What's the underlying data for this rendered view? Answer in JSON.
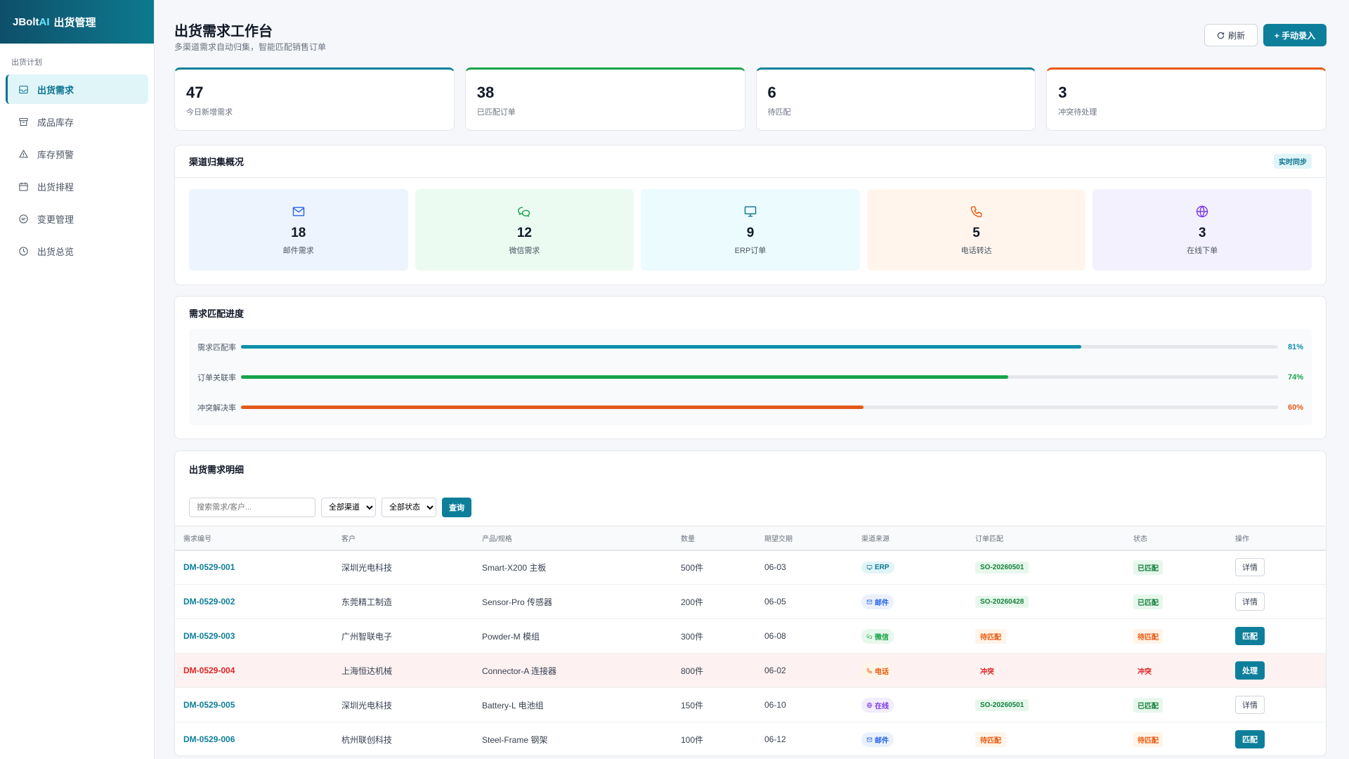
{
  "brand": {
    "prefix": "JBolt",
    "ai": "AI",
    "name": "出货管理"
  },
  "sidebar": {
    "section": "出货计划",
    "items": [
      {
        "label": "出货需求",
        "icon": "inbox-icon"
      },
      {
        "label": "成品库存",
        "icon": "archive-icon"
      },
      {
        "label": "库存预警",
        "icon": "alert-icon"
      },
      {
        "label": "出货排程",
        "icon": "calendar-icon"
      },
      {
        "label": "变更管理",
        "icon": "edit-icon"
      },
      {
        "label": "出货总览",
        "icon": "clock-icon"
      }
    ]
  },
  "header": {
    "title": "出货需求工作台",
    "subtitle": "多渠道需求自动归集，智能匹配销售订单",
    "refresh": "刷新",
    "add": "+ 手动录入"
  },
  "kpis": [
    {
      "value": "47",
      "label": "今日新增需求",
      "color": "#0e7f9b"
    },
    {
      "value": "38",
      "label": "已匹配订单",
      "color": "#16a34a"
    },
    {
      "value": "6",
      "label": "待匹配",
      "color": "#0e7f9b"
    },
    {
      "value": "3",
      "label": "冲突待处理",
      "color": "#ea580c"
    }
  ],
  "channels": {
    "title": "渠道归集概况",
    "badge": "实时同步",
    "items": [
      {
        "value": "18",
        "label": "邮件需求",
        "bg": "#eef4fd",
        "color": "#2563eb",
        "icon": "mail-icon"
      },
      {
        "value": "12",
        "label": "微信需求",
        "bg": "#ecfbf1",
        "color": "#16a34a",
        "icon": "wechat-icon"
      },
      {
        "value": "9",
        "label": "ERP订单",
        "bg": "#ecfbfd",
        "color": "#0e7490",
        "icon": "monitor-icon"
      },
      {
        "value": "5",
        "label": "电话转达",
        "bg": "#fff5ec",
        "color": "#ea580c",
        "icon": "phone-icon"
      },
      {
        "value": "3",
        "label": "在线下单",
        "bg": "#f3f1fd",
        "color": "#7c3aed",
        "icon": "globe-icon"
      }
    ]
  },
  "progress": {
    "title": "需求匹配进度",
    "items": [
      {
        "label": "需求匹配率",
        "value": "81%",
        "fraction": 0.81,
        "color": "#0e8fab"
      },
      {
        "label": "订单关联率",
        "value": "74%",
        "fraction": 0.74,
        "color": "#16a34a"
      },
      {
        "label": "冲突解决率",
        "value": "60%",
        "fraction": 0.6,
        "color": "#e35a1a"
      }
    ]
  },
  "table": {
    "title": "出货需求明细",
    "search_placeholder": "搜索需求/客户...",
    "channel_filter": "全部渠道",
    "status_filter": "全部状态",
    "query": "查询",
    "columns": [
      "需求编号",
      "客户",
      "产品/规格",
      "数量",
      "期望交期",
      "渠道来源",
      "订单匹配",
      "状态",
      "操作"
    ],
    "rows": [
      {
        "id": "DM-0529-001",
        "customer": "深圳光电科技",
        "product": "Smart-X200 主板",
        "qty": "500件",
        "date": "06-03",
        "channel": "ERP",
        "channel_kind": "erp",
        "order": "SO-20260501",
        "order_kind": "ok",
        "status": "已匹配",
        "status_kind": "ok",
        "action": "详情",
        "action_kind": "ghost",
        "conflict": false
      },
      {
        "id": "DM-0529-002",
        "customer": "东莞精工制造",
        "product": "Sensor-Pro 传感器",
        "qty": "200件",
        "date": "06-05",
        "channel": "邮件",
        "channel_kind": "mail",
        "order": "SO-20260428",
        "order_kind": "ok",
        "status": "已匹配",
        "status_kind": "ok",
        "action": "详情",
        "action_kind": "ghost",
        "conflict": false
      },
      {
        "id": "DM-0529-003",
        "customer": "广州智联电子",
        "product": "Powder-M 模组",
        "qty": "300件",
        "date": "06-08",
        "channel": "微信",
        "channel_kind": "wechat",
        "order": "待匹配",
        "order_kind": "wait",
        "status": "待匹配",
        "status_kind": "wait",
        "action": "匹配",
        "action_kind": "solid",
        "conflict": false
      },
      {
        "id": "DM-0529-004",
        "customer": "上海恒达机械",
        "product": "Connector-A 连接器",
        "qty": "800件",
        "date": "06-02",
        "channel": "电话",
        "channel_kind": "phone",
        "order": "冲突",
        "order_kind": "bad",
        "status": "冲突",
        "status_kind": "bad",
        "action": "处理",
        "action_kind": "solid",
        "conflict": true
      },
      {
        "id": "DM-0529-005",
        "customer": "深圳光电科技",
        "product": "Battery-L 电池组",
        "qty": "150件",
        "date": "06-10",
        "channel": "在线",
        "channel_kind": "online",
        "order": "SO-20260501",
        "order_kind": "ok",
        "status": "已匹配",
        "status_kind": "ok",
        "action": "详情",
        "action_kind": "ghost",
        "conflict": false
      },
      {
        "id": "DM-0529-006",
        "customer": "杭州联创科技",
        "product": "Steel-Frame 钢架",
        "qty": "100件",
        "date": "06-12",
        "channel": "邮件",
        "channel_kind": "mail",
        "order": "待匹配",
        "order_kind": "wait",
        "status": "待匹配",
        "status_kind": "wait",
        "action": "匹配",
        "action_kind": "solid",
        "conflict": false
      }
    ]
  }
}
